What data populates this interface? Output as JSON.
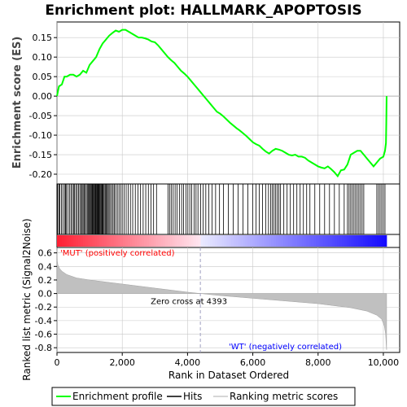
{
  "chart_data": {
    "title": "Enrichment plot: HALLMARK_APOPTOSIS",
    "type": "line",
    "es_panel": {
      "ylabel": "Enrichment score (ES)",
      "yticks": [
        "0.15",
        "0.10",
        "0.05",
        "0.00",
        "-0.05",
        "-0.10",
        "-0.15",
        "-0.20"
      ],
      "ylim": [
        -0.225,
        0.19
      ],
      "series": [
        {
          "name": "Enrichment profile",
          "color": "#00ff00",
          "x": [
            0,
            60,
            150,
            230,
            300,
            400,
            500,
            600,
            700,
            800,
            900,
            1000,
            1100,
            1200,
            1300,
            1400,
            1500,
            1600,
            1700,
            1800,
            1900,
            2000,
            2100,
            2200,
            2300,
            2400,
            2500,
            2600,
            2700,
            2800,
            2900,
            3000,
            3100,
            3200,
            3300,
            3400,
            3500,
            3600,
            3700,
            3800,
            3900,
            4000,
            4100,
            4200,
            4300,
            4400,
            4500,
            4600,
            4700,
            4800,
            4900,
            5000,
            5100,
            5200,
            5300,
            5400,
            5500,
            5600,
            5700,
            5800,
            5900,
            6000,
            6100,
            6200,
            6300,
            6400,
            6500,
            6600,
            6700,
            6800,
            6900,
            7000,
            7100,
            7200,
            7300,
            7400,
            7500,
            7600,
            7700,
            7800,
            7900,
            8000,
            8100,
            8200,
            8300,
            8400,
            8500,
            8600,
            8700,
            8800,
            8900,
            9000,
            9100,
            9200,
            9300,
            9400,
            9500,
            9600,
            9700,
            9800,
            9900,
            10000,
            10050,
            10080,
            10090,
            10100
          ],
          "y": [
            0.0,
            0.025,
            0.03,
            0.05,
            0.05,
            0.055,
            0.055,
            0.05,
            0.055,
            0.065,
            0.06,
            0.08,
            0.09,
            0.1,
            0.12,
            0.135,
            0.145,
            0.155,
            0.162,
            0.168,
            0.165,
            0.17,
            0.17,
            0.165,
            0.16,
            0.155,
            0.15,
            0.15,
            0.148,
            0.145,
            0.14,
            0.138,
            0.13,
            0.12,
            0.11,
            0.1,
            0.092,
            0.085,
            0.075,
            0.065,
            0.058,
            0.05,
            0.04,
            0.03,
            0.02,
            0.01,
            0.0,
            -0.01,
            -0.02,
            -0.03,
            -0.04,
            -0.045,
            -0.052,
            -0.06,
            -0.068,
            -0.075,
            -0.082,
            -0.088,
            -0.095,
            -0.102,
            -0.11,
            -0.118,
            -0.123,
            -0.127,
            -0.135,
            -0.142,
            -0.147,
            -0.14,
            -0.135,
            -0.137,
            -0.14,
            -0.145,
            -0.15,
            -0.152,
            -0.15,
            -0.155,
            -0.155,
            -0.158,
            -0.165,
            -0.17,
            -0.175,
            -0.18,
            -0.183,
            -0.185,
            -0.18,
            -0.187,
            -0.195,
            -0.205,
            -0.19,
            -0.188,
            -0.175,
            -0.15,
            -0.145,
            -0.14,
            -0.14,
            -0.15,
            -0.16,
            -0.17,
            -0.18,
            -0.17,
            -0.16,
            -0.155,
            -0.14,
            -0.12,
            -0.07,
            0.0
          ]
        }
      ]
    },
    "hits_panel": {
      "hit_ranks": [
        20,
        60,
        90,
        140,
        180,
        230,
        260,
        290,
        340,
        390,
        430,
        470,
        510,
        540,
        580,
        620,
        660,
        700,
        740,
        770,
        800,
        830,
        860,
        900,
        930,
        960,
        990,
        1010,
        1030,
        1060,
        1080,
        1100,
        1120,
        1150,
        1170,
        1190,
        1210,
        1230,
        1250,
        1270,
        1290,
        1310,
        1330,
        1360,
        1380,
        1400,
        1420,
        1450,
        1480,
        1510,
        1540,
        1570,
        1600,
        1640,
        1680,
        1720,
        1760,
        1800,
        1850,
        1900,
        1950,
        2000,
        2060,
        2120,
        2180,
        2250,
        2320,
        2400,
        2480,
        2560,
        2640,
        2720,
        2800,
        2880,
        2960,
        3050,
        3400,
        3450,
        3500,
        3560,
        3620,
        3680,
        3750,
        3820,
        3880,
        3950,
        4010,
        4070,
        4130,
        4200,
        4260,
        4320,
        4400,
        4480,
        4560,
        4650,
        4750,
        4860,
        4980,
        5100,
        5250,
        5400,
        5550,
        5700,
        5850,
        6000,
        6100,
        6200,
        6300,
        6400,
        6480,
        6550,
        6600,
        6650,
        6700,
        6750,
        6800,
        6850,
        6950,
        7050,
        7150,
        7250,
        7350,
        7450,
        7550,
        7650,
        7750,
        7900,
        8050,
        8200,
        8350,
        8500,
        8650,
        8800,
        8900,
        8950,
        9000,
        9050,
        9100,
        9150,
        9200,
        9250,
        9300,
        9350,
        9400,
        9800,
        9850,
        9900,
        9950,
        10000,
        10050
      ]
    },
    "metric_panel": {
      "ylabel": "Ranked list metric (Signal2Noise)",
      "yticks": [
        "0.6",
        "0.4",
        "0.2",
        "0.0",
        "-0.2",
        "-0.4",
        "-0.6",
        "-0.8"
      ],
      "ylim": [
        -0.87,
        0.68
      ],
      "xlabel": "Rank in Dataset Ordered",
      "xticks": [
        "0",
        "2,000",
        "4,000",
        "6,000",
        "8,000",
        "10,000"
      ],
      "xlim": [
        0,
        10500
      ],
      "n_genes": 10100,
      "zero_cross": 4393,
      "zero_cross_label": "Zero cross at 4393",
      "pos_label": "'MUT' (positively correlated)",
      "neg_label": "'WT' (negatively correlated)",
      "profile_x": [
        0,
        10,
        30,
        80,
        150,
        300,
        600,
        1000,
        1500,
        2000,
        2500,
        3000,
        3500,
        4000,
        4393,
        5000,
        6000,
        7000,
        8000,
        9000,
        9500,
        9800,
        9950,
        10030,
        10070,
        10090,
        10100
      ],
      "profile_y": [
        0.65,
        0.48,
        0.42,
        0.37,
        0.33,
        0.28,
        0.23,
        0.2,
        0.17,
        0.14,
        0.11,
        0.08,
        0.05,
        0.02,
        0.0,
        -0.03,
        -0.07,
        -0.11,
        -0.15,
        -0.21,
        -0.26,
        -0.32,
        -0.38,
        -0.48,
        -0.6,
        -0.78,
        -0.83
      ]
    },
    "legend": {
      "items": [
        {
          "label": "Enrichment profile",
          "color": "#00ff00"
        },
        {
          "label": "Hits",
          "color": "#000000"
        },
        {
          "label": "Ranking metric scores",
          "color": "#c8c8c8"
        }
      ]
    },
    "colors": {
      "pos_label": "#ff0000",
      "neg_label": "#0000ff",
      "grid": "#c8c8c8"
    }
  }
}
